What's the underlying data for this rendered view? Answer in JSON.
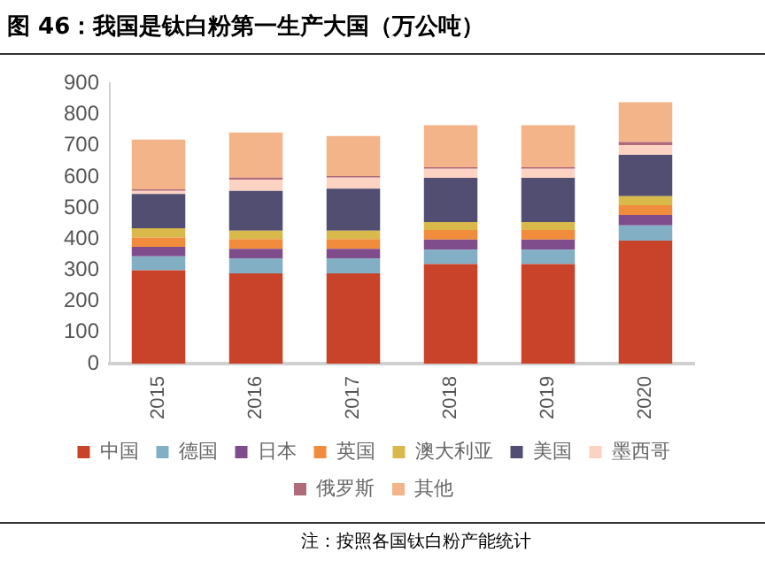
{
  "chart_data": {
    "type": "bar",
    "title": "图 46：我国是钛白粉第一生产大国（万公吨）",
    "categories": [
      "2015",
      "2016",
      "2017",
      "2018",
      "2019",
      "2020"
    ],
    "stacked": true,
    "series": [
      {
        "name": "中国",
        "color": "#c9432a",
        "values": [
          300,
          290,
          290,
          320,
          320,
          395
        ]
      },
      {
        "name": "德国",
        "color": "#82afc3",
        "values": [
          45,
          48,
          48,
          46,
          46,
          49
        ]
      },
      {
        "name": "日本",
        "color": "#7f4d8c",
        "values": [
          30,
          31,
          31,
          33,
          33,
          34
        ]
      },
      {
        "name": "英国",
        "color": "#f08c3c",
        "values": [
          30,
          31,
          31,
          30,
          30,
          31
        ]
      },
      {
        "name": "澳大利亚",
        "color": "#d8b94a",
        "values": [
          30,
          27,
          27,
          26,
          26,
          29
        ]
      },
      {
        "name": "美国",
        "color": "#524e72",
        "values": [
          110,
          128,
          135,
          142,
          142,
          133
        ]
      },
      {
        "name": "墨西哥",
        "color": "#fcd2c3",
        "values": [
          10,
          36,
          36,
          29,
          29,
          31
        ]
      },
      {
        "name": "俄罗斯",
        "color": "#b06b7a",
        "values": [
          5,
          7,
          5,
          5,
          5,
          10
        ]
      },
      {
        "name": "其他",
        "color": "#f4b489",
        "values": [
          160,
          145,
          128,
          135,
          135,
          128
        ]
      }
    ],
    "ylim": [
      0,
      900
    ],
    "yticks": [
      0,
      100,
      200,
      300,
      400,
      500,
      600,
      700,
      800,
      900
    ],
    "grid": false,
    "legend": "bottom",
    "annotations": [
      "注：按照各国钛白粉产能统计"
    ]
  }
}
